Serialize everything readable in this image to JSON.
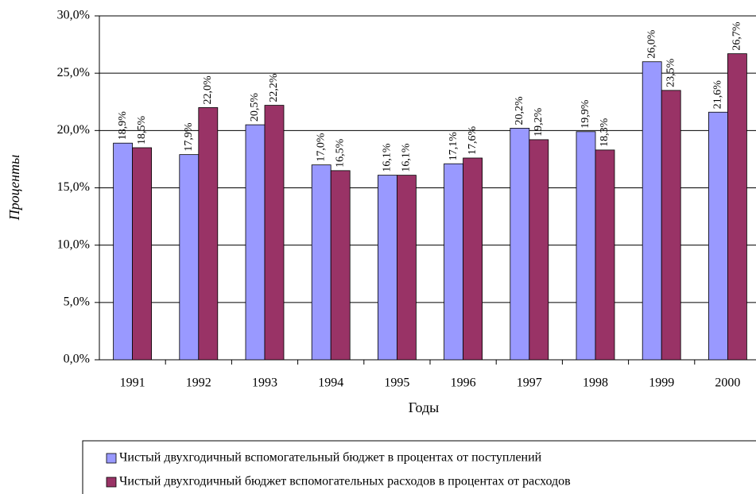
{
  "chart_data": {
    "type": "bar",
    "y_label": "Проценты",
    "x_label": "Годы",
    "categories": [
      "1991",
      "1992",
      "1993",
      "1994",
      "1995",
      "1996",
      "1997",
      "1998",
      "1999",
      "2000"
    ],
    "series": [
      {
        "name": "Чистый двухгодичный вспомогательный бюджет в процентах от поступлений",
        "color": "#9999ff",
        "values": [
          18.9,
          17.9,
          20.5,
          17.0,
          16.1,
          17.1,
          20.2,
          19.9,
          26.0,
          21.6
        ],
        "value_labels": [
          "18,9%",
          "17,9%",
          "20,5%",
          "17,0%",
          "16,1%",
          "17,1%",
          "20,2%",
          "19,9%",
          "26,0%",
          "21,6%"
        ]
      },
      {
        "name": "Чистый двухгодичный бюджет вспомогательных расходов в процентах от расходов",
        "color": "#993366",
        "values": [
          18.5,
          22.0,
          22.2,
          16.5,
          16.1,
          17.6,
          19.2,
          18.3,
          23.5,
          26.7
        ],
        "value_labels": [
          "18,5%",
          "22,0%",
          "22,2%",
          "16,5%",
          "16,1%",
          "17,6%",
          "19,2%",
          "18,3%",
          "23,5%",
          "26,7%"
        ]
      }
    ],
    "ylim": [
      0,
      30
    ],
    "yticks": [
      {
        "value": 0,
        "label": "0,0%"
      },
      {
        "value": 5,
        "label": "5,0%"
      },
      {
        "value": 10,
        "label": "10,0%"
      },
      {
        "value": 15,
        "label": "15,0%"
      },
      {
        "value": 20,
        "label": "20,0%"
      },
      {
        "value": 25,
        "label": "25,0%"
      },
      {
        "value": 30,
        "label": "30,0%"
      }
    ],
    "grid": true
  }
}
